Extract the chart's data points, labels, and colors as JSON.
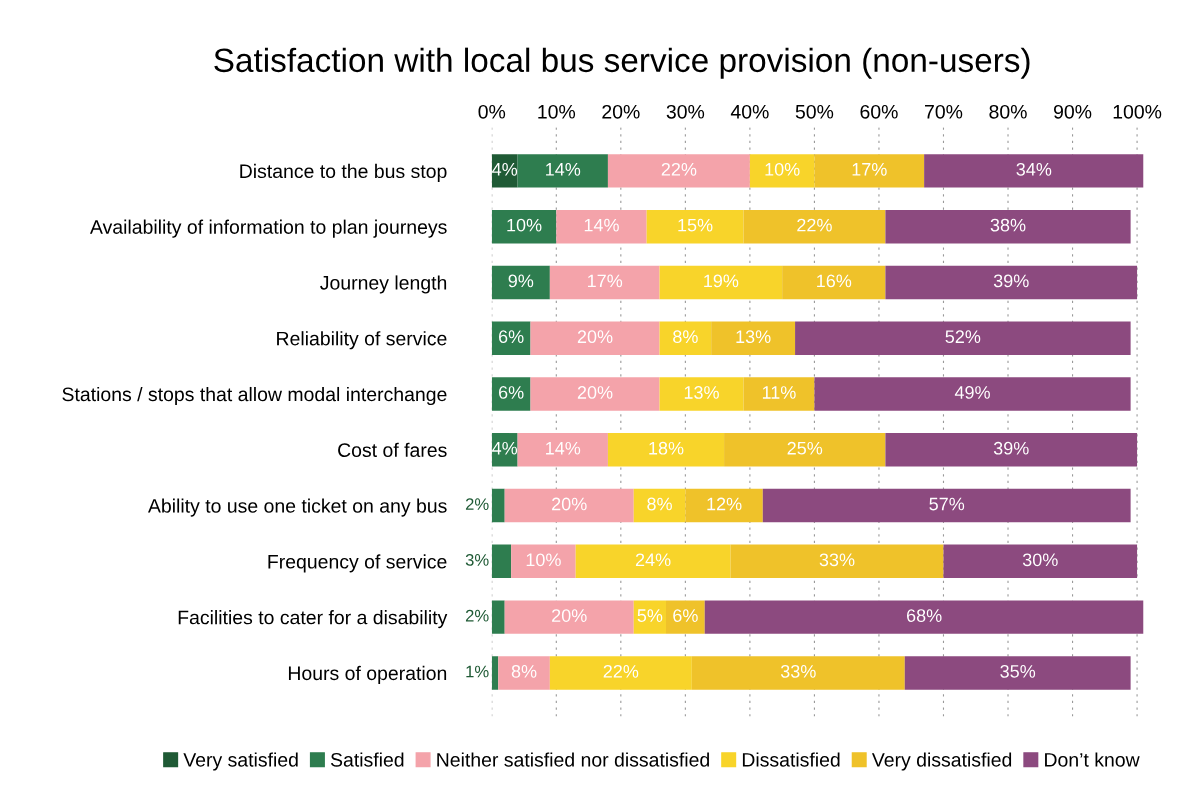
{
  "chart_data": {
    "type": "bar",
    "orientation": "horizontal",
    "stacked": true,
    "title": "Satisfaction with local bus service provision (non-users)",
    "categories": [
      "Distance to the bus stop",
      "Availability of information to plan journeys",
      "Journey length",
      "Reliability of service",
      "Stations / stops that allow modal interchange",
      "Cost of fares",
      "Ability to use one ticket on any bus",
      "Frequency of service",
      "Facilities to cater for a disability",
      "Hours of operation"
    ],
    "series": [
      {
        "name": "Very satisfied",
        "color": "#1f5a35",
        "values": [
          4,
          null,
          null,
          null,
          null,
          null,
          null,
          null,
          null,
          null
        ],
        "value_labels": [
          "4%",
          null,
          null,
          null,
          null,
          null,
          null,
          null,
          null,
          null
        ]
      },
      {
        "name": "Satisfied",
        "color": "#2e7d4f",
        "values": [
          14,
          10,
          9,
          6,
          6,
          4,
          2,
          3,
          2,
          1
        ],
        "value_labels": [
          "14%",
          "10%",
          "9%",
          "6%",
          "6%",
          "4%",
          "2%",
          "3%",
          "2%",
          "1%"
        ]
      },
      {
        "name": "Neither satisfied nor dissatisfied",
        "color": "#f4a3aa",
        "values": [
          22,
          14,
          17,
          20,
          20,
          14,
          20,
          10,
          20,
          8
        ],
        "value_labels": [
          "22%",
          "14%",
          "17%",
          "20%",
          "20%",
          "14%",
          "20%",
          "10%",
          "20%",
          "8%"
        ]
      },
      {
        "name": "Dissatisfied",
        "color": "#f8d42a",
        "values": [
          10,
          15,
          19,
          8,
          13,
          18,
          8,
          24,
          5,
          22
        ],
        "value_labels": [
          "10%",
          "15%",
          "19%",
          "8%",
          "13%",
          "18%",
          "8%",
          "24%",
          "5%",
          "22%"
        ]
      },
      {
        "name": "Very dissatisfied",
        "color": "#efc22a",
        "values": [
          17,
          22,
          16,
          13,
          11,
          25,
          12,
          33,
          6,
          33
        ],
        "value_labels": [
          "17%",
          "22%",
          "16%",
          "13%",
          "11%",
          "25%",
          "12%",
          "33%",
          "6%",
          "33%"
        ]
      },
      {
        "name": "Don’t know",
        "color": "#8c4a7f",
        "values": [
          34,
          38,
          39,
          52,
          49,
          39,
          57,
          30,
          68,
          35
        ],
        "value_labels": [
          "34%",
          "38%",
          "39%",
          "52%",
          "49%",
          "39%",
          "57%",
          "30%",
          "68%",
          "35%"
        ]
      }
    ],
    "xlim": [
      0,
      101
    ],
    "xticks": [
      {
        "value": 0,
        "label": "0%"
      },
      {
        "value": 10,
        "label": "10%"
      },
      {
        "value": 20,
        "label": "20%"
      },
      {
        "value": 30,
        "label": "30%"
      },
      {
        "value": 40,
        "label": "40%"
      },
      {
        "value": 50,
        "label": "50%"
      },
      {
        "value": 60,
        "label": "60%"
      },
      {
        "value": 70,
        "label": "70%"
      },
      {
        "value": 80,
        "label": "80%"
      },
      {
        "value": 90,
        "label": "90%"
      },
      {
        "value": 100,
        "label": "100%"
      }
    ],
    "grid": "x",
    "legend": "bottom"
  }
}
